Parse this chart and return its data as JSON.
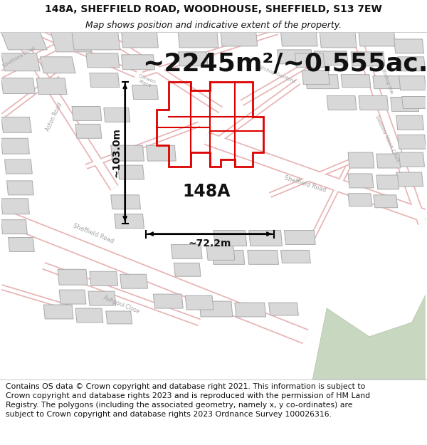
{
  "title_line1": "148A, SHEFFIELD ROAD, WOODHOUSE, SHEFFIELD, S13 7EW",
  "title_line2": "Map shows position and indicative extent of the property.",
  "area_text": "~2245m²/~0.555ac.",
  "label_148A": "148A",
  "dim_width": "~72.2m",
  "dim_height": "~103.0m",
  "footer_text": "Contains OS data © Crown copyright and database right 2021. This information is subject to Crown copyright and database rights 2023 and is reproduced with the permission of HM Land Registry. The polygons (including the associated geometry, namely x, y co-ordinates) are subject to Crown copyright and database rights 2023 Ordnance Survey 100026316.",
  "bg_color": "#ffffff",
  "map_bg": "#f2f0ed",
  "road_color": "#e8b4b4",
  "road_fill": "#ffffff",
  "highlight_color": "#dd0000",
  "building_fill": "#d8d8d8",
  "building_stroke": "#aaaaaa",
  "text_color": "#111111",
  "footer_color": "#111111",
  "title_fontsize": 10,
  "subtitle_fontsize": 9,
  "area_fontsize": 26,
  "label_fontsize": 17,
  "dim_fontsize": 10,
  "footer_fontsize": 7.8
}
